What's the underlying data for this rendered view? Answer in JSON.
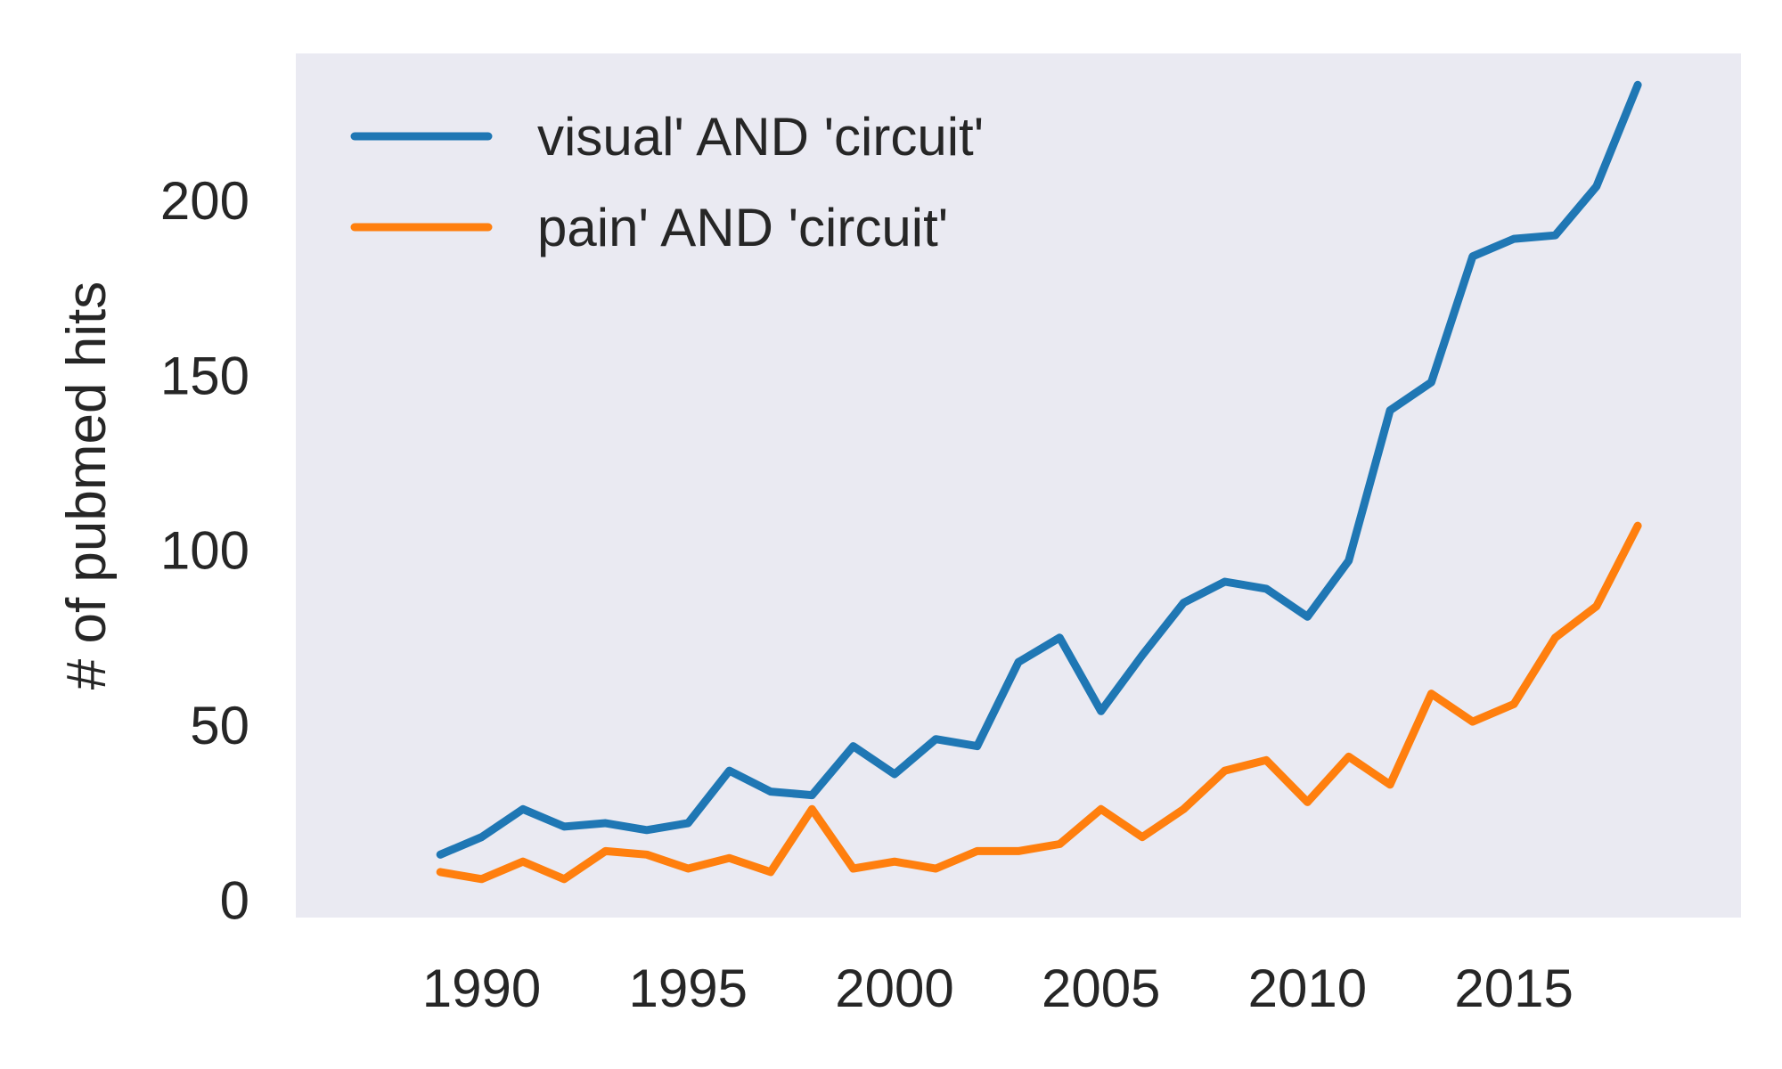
{
  "chart_data": {
    "type": "line",
    "title": "",
    "xlabel": "",
    "ylabel": "# of pubmed hits",
    "xlim": [
      1985.5,
      2020.5
    ],
    "ylim": [
      -5,
      242
    ],
    "xticks": [
      1990,
      1995,
      2000,
      2005,
      2010,
      2015
    ],
    "yticks": [
      0,
      50,
      100,
      150,
      200
    ],
    "grid": false,
    "legend_position": "top-left",
    "background": "#eaeaf2",
    "x": [
      1989,
      1990,
      1991,
      1992,
      1993,
      1994,
      1995,
      1996,
      1997,
      1998,
      1999,
      2000,
      2001,
      2002,
      2003,
      2004,
      2005,
      2006,
      2007,
      2008,
      2009,
      2010,
      2011,
      2012,
      2013,
      2014,
      2015,
      2016,
      2017,
      2018
    ],
    "series": [
      {
        "name": "visual' AND 'circuit'",
        "color": "#1f77b4",
        "values": [
          13,
          18,
          26,
          21,
          22,
          20,
          22,
          37,
          31,
          30,
          44,
          36,
          46,
          44,
          68,
          75,
          54,
          70,
          85,
          91,
          89,
          81,
          97,
          140,
          148,
          184,
          189,
          190,
          204,
          233
        ]
      },
      {
        "name": "pain' AND 'circuit'",
        "color": "#ff7f0e",
        "values": [
          8,
          6,
          11,
          6,
          14,
          13,
          9,
          12,
          8,
          26,
          9,
          11,
          9,
          14,
          14,
          16,
          26,
          18,
          26,
          37,
          40,
          28,
          41,
          33,
          59,
          51,
          56,
          75,
          84,
          107
        ]
      }
    ]
  }
}
